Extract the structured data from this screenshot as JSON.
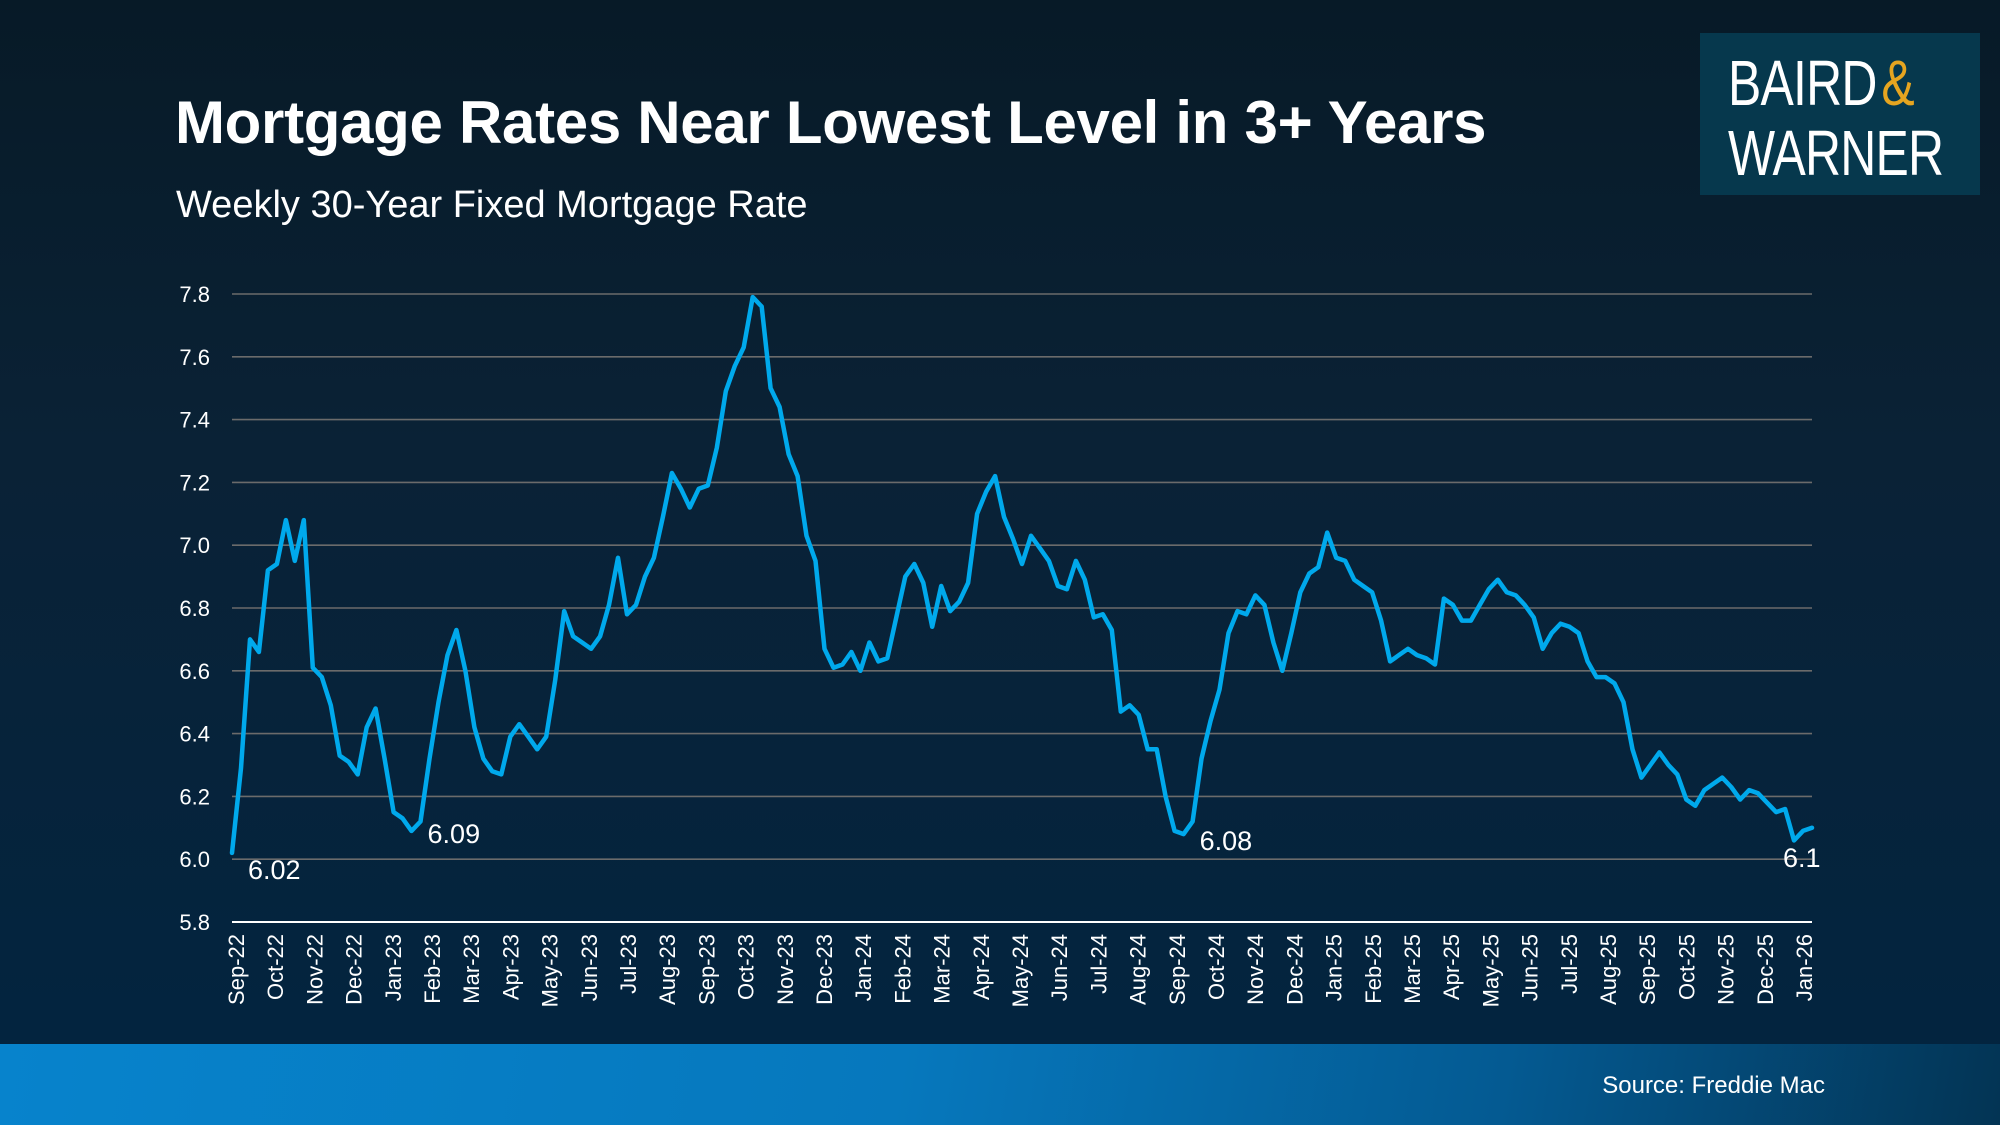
{
  "header": {
    "title": "Mortgage Rates Near Lowest Level in 3+ Years",
    "subtitle": "Weekly 30-Year Fixed Mortgage Rate"
  },
  "logo": {
    "line1": "BAIRD",
    "ampersand": "&",
    "line2": "WARNER",
    "accent_color": "#e6a520"
  },
  "footer": {
    "source": "Source: Freddie Mac"
  },
  "colors": {
    "line": "#00a9ec",
    "gridline": "#6b6b6b",
    "axis": "#ffffff"
  },
  "chart_data": {
    "type": "line",
    "title": "Mortgage Rates Near Lowest Level in 3+ Years",
    "subtitle": "Weekly 30-Year Fixed Mortgage Rate",
    "xlabel": "",
    "ylabel": "",
    "ylim": [
      5.8,
      7.8
    ],
    "yticks": [
      "5.8",
      "6.0",
      "6.2",
      "6.4",
      "6.6",
      "6.8",
      "7.0",
      "7.2",
      "7.4",
      "7.6",
      "7.8"
    ],
    "grid": true,
    "legend": "none",
    "month_labels": [
      "Sep-22",
      "Oct-22",
      "Nov-22",
      "Dec-22",
      "Jan-23",
      "Feb-23",
      "Mar-23",
      "Apr-23",
      "May-23",
      "Jun-23",
      "Jul-23",
      "Aug-23",
      "Sep-23",
      "Oct-23",
      "Nov-23",
      "Dec-23",
      "Jan-24",
      "Feb-24",
      "Mar-24",
      "Apr-24",
      "May-24",
      "Jun-24",
      "Jul-24",
      "Aug-24",
      "Sep-24",
      "Oct-24",
      "Nov-24",
      "Dec-24",
      "Jan-25",
      "Feb-25",
      "Mar-25",
      "Apr-25",
      "May-25",
      "Jun-25",
      "Jul-25",
      "Aug-25",
      "Sep-25",
      "Oct-25",
      "Nov-25",
      "Dec-25",
      "Jan-26"
    ],
    "series": [
      {
        "name": "30-Year Fixed Mortgage Rate",
        "values": [
          6.02,
          6.29,
          6.7,
          6.66,
          6.92,
          6.94,
          7.08,
          6.95,
          7.08,
          6.61,
          6.58,
          6.49,
          6.33,
          6.31,
          6.27,
          6.42,
          6.48,
          6.32,
          6.15,
          6.13,
          6.09,
          6.12,
          6.32,
          6.5,
          6.65,
          6.73,
          6.6,
          6.42,
          6.32,
          6.28,
          6.27,
          6.39,
          6.43,
          6.39,
          6.35,
          6.39,
          6.57,
          6.79,
          6.71,
          6.69,
          6.67,
          6.71,
          6.81,
          6.96,
          6.78,
          6.81,
          6.9,
          6.96,
          7.09,
          7.23,
          7.18,
          7.12,
          7.18,
          7.19,
          7.31,
          7.49,
          7.57,
          7.63,
          7.79,
          7.76,
          7.5,
          7.44,
          7.29,
          7.22,
          7.03,
          6.95,
          6.67,
          6.61,
          6.62,
          6.66,
          6.6,
          6.69,
          6.63,
          6.64,
          6.77,
          6.9,
          6.94,
          6.88,
          6.74,
          6.87,
          6.79,
          6.82,
          6.88,
          7.1,
          7.17,
          7.22,
          7.09,
          7.02,
          6.94,
          7.03,
          6.99,
          6.95,
          6.87,
          6.86,
          6.95,
          6.89,
          6.77,
          6.78,
          6.73,
          6.47,
          6.49,
          6.46,
          6.35,
          6.35,
          6.2,
          6.09,
          6.08,
          6.12,
          6.32,
          6.44,
          6.54,
          6.72,
          6.79,
          6.78,
          6.84,
          6.81,
          6.69,
          6.6,
          6.72,
          6.85,
          6.91,
          6.93,
          7.04,
          6.96,
          6.95,
          6.89,
          6.87,
          6.85,
          6.76,
          6.63,
          6.65,
          6.67,
          6.65,
          6.64,
          6.62,
          6.83,
          6.81,
          6.76,
          6.76,
          6.81,
          6.86,
          6.89,
          6.85,
          6.84,
          6.81,
          6.77,
          6.67,
          6.72,
          6.75,
          6.74,
          6.72,
          6.63,
          6.58,
          6.58,
          6.56,
          6.5,
          6.35,
          6.26,
          6.3,
          6.34,
          6.3,
          6.27,
          6.19,
          6.17,
          6.22,
          6.24,
          6.26,
          6.23,
          6.19,
          6.22,
          6.21,
          6.18,
          6.15,
          6.16,
          6.06,
          6.09,
          6.1
        ]
      }
    ],
    "annotations": [
      {
        "label": "6.02",
        "index": 0
      },
      {
        "label": "6.09",
        "index": 20
      },
      {
        "label": "6.08",
        "index": 106
      },
      {
        "label": "6.1",
        "index": 175
      }
    ]
  }
}
